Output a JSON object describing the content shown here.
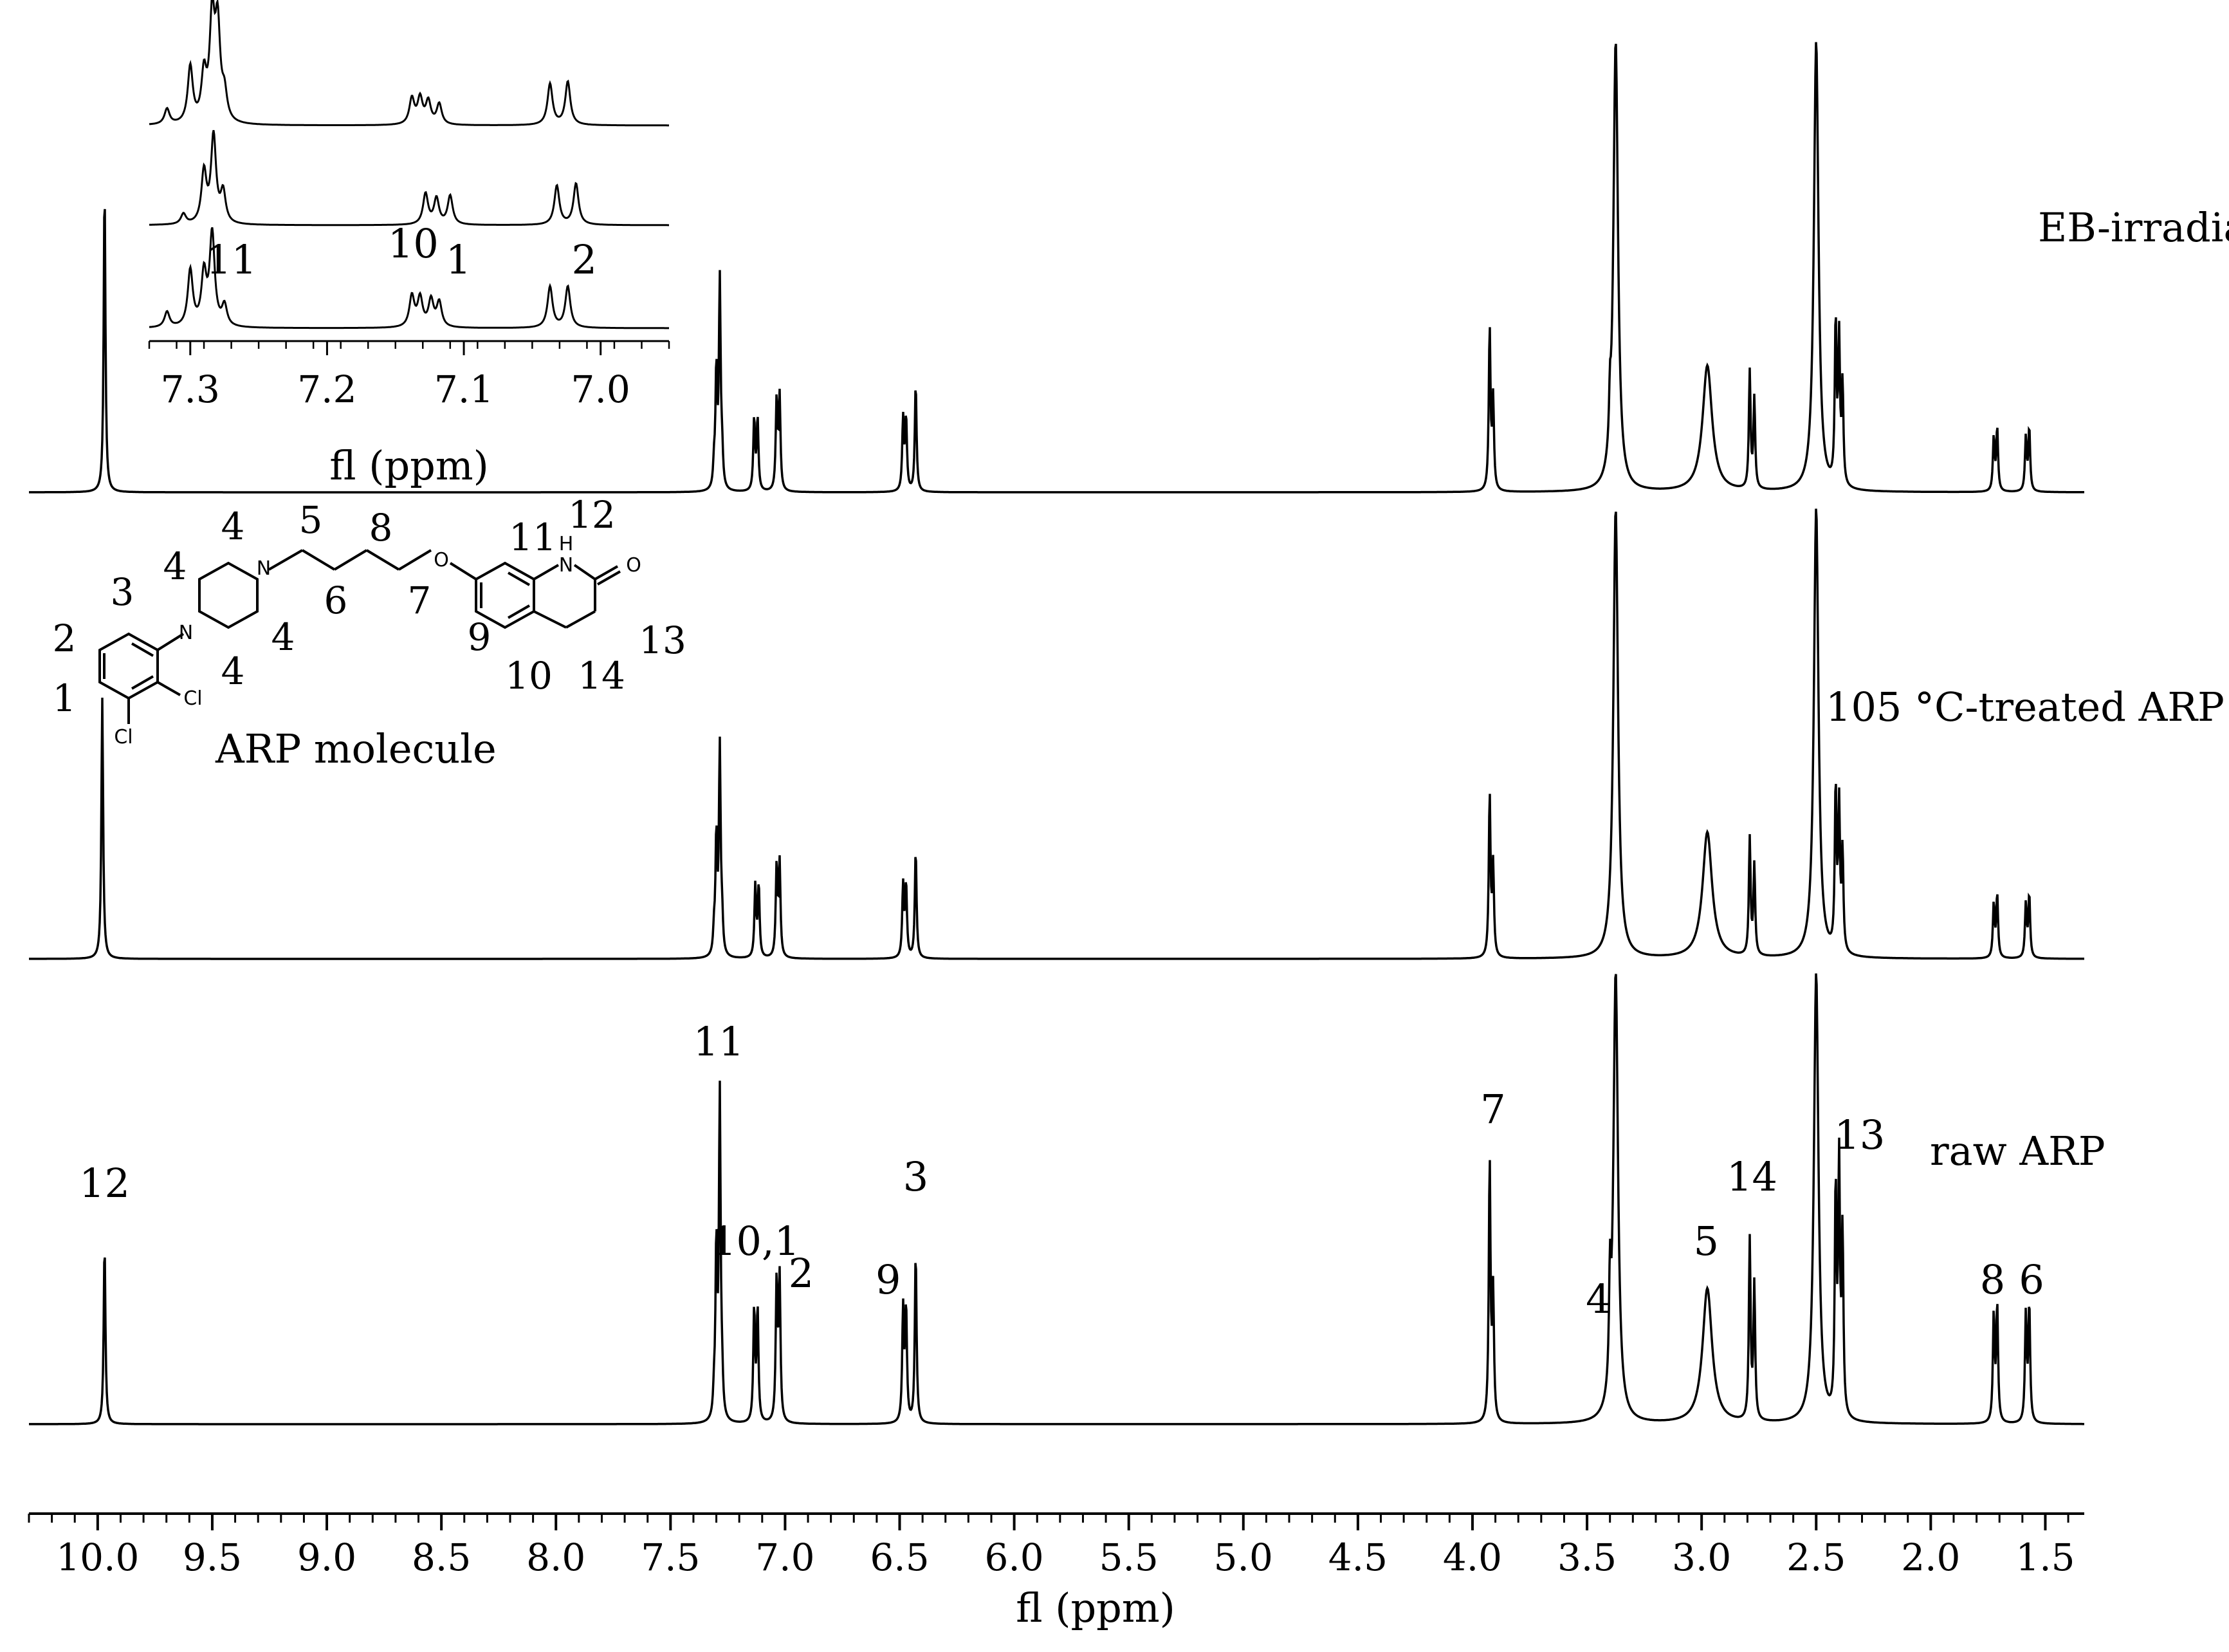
{
  "chart_data": {
    "type": "line",
    "title": "",
    "xlabel": "fl (ppm)",
    "ylabel": "",
    "x_reversed": true,
    "xlim": [
      10.3,
      1.33
    ],
    "xticks": [
      "10.0",
      "9.5",
      "9.0",
      "8.5",
      "8.0",
      "7.5",
      "7.0",
      "6.5",
      "6.0",
      "5.5",
      "5.0",
      "4.5",
      "4.0",
      "3.5",
      "3.0",
      "2.5",
      "2.0",
      "1.5"
    ],
    "series": [
      {
        "name": "EB-irradiated ARP",
        "peaks": [
          {
            "ppm": 9.97,
            "height": 0.68
          },
          {
            "ppm": 7.31,
            "height": 0.05
          },
          {
            "ppm": 7.3,
            "height": 0.26
          },
          {
            "ppm": 7.285,
            "height": 0.46
          },
          {
            "ppm": 7.275,
            "height": 0.07
          },
          {
            "ppm": 7.135,
            "height": 0.16
          },
          {
            "ppm": 7.12,
            "height": 0.16
          },
          {
            "ppm": 7.037,
            "height": 0.2
          },
          {
            "ppm": 7.024,
            "height": 0.21
          },
          {
            "ppm": 6.485,
            "height": 0.16
          },
          {
            "ppm": 6.472,
            "height": 0.16
          },
          {
            "ppm": 6.43,
            "height": 0.24
          },
          {
            "ppm": 3.925,
            "height": 0.36
          },
          {
            "ppm": 3.91,
            "height": 0.2
          },
          {
            "ppm": 3.4,
            "height": 0.1
          },
          {
            "ppm": 3.375,
            "height": 1.0
          },
          {
            "ppm": 2.975,
            "height": 0.28
          },
          {
            "ppm": 2.79,
            "height": 0.26
          },
          {
            "ppm": 2.77,
            "height": 0.2
          },
          {
            "ppm": 2.5,
            "height": 1.0
          },
          {
            "ppm": 2.415,
            "height": 0.36
          },
          {
            "ppm": 2.4,
            "height": 0.32
          },
          {
            "ppm": 2.385,
            "height": 0.22
          },
          {
            "ppm": 1.725,
            "height": 0.12
          },
          {
            "ppm": 1.71,
            "height": 0.14
          },
          {
            "ppm": 1.585,
            "height": 0.12
          },
          {
            "ppm": 1.57,
            "height": 0.14
          }
        ]
      },
      {
        "name": "105 °C-treated ARP",
        "peaks": [
          {
            "ppm": 9.98,
            "height": 0.58
          },
          {
            "ppm": 7.31,
            "height": 0.05
          },
          {
            "ppm": 7.3,
            "height": 0.26
          },
          {
            "ppm": 7.285,
            "height": 0.46
          },
          {
            "ppm": 7.275,
            "height": 0.07
          },
          {
            "ppm": 7.13,
            "height": 0.16
          },
          {
            "ppm": 7.115,
            "height": 0.16
          },
          {
            "ppm": 7.037,
            "height": 0.2
          },
          {
            "ppm": 7.024,
            "height": 0.21
          },
          {
            "ppm": 6.485,
            "height": 0.16
          },
          {
            "ppm": 6.472,
            "height": 0.16
          },
          {
            "ppm": 6.43,
            "height": 0.24
          },
          {
            "ppm": 3.925,
            "height": 0.36
          },
          {
            "ppm": 3.91,
            "height": 0.2
          },
          {
            "ppm": 3.375,
            "height": 1.0
          },
          {
            "ppm": 2.975,
            "height": 0.28
          },
          {
            "ppm": 2.79,
            "height": 0.26
          },
          {
            "ppm": 2.77,
            "height": 0.2
          },
          {
            "ppm": 2.5,
            "height": 1.0
          },
          {
            "ppm": 2.415,
            "height": 0.36
          },
          {
            "ppm": 2.4,
            "height": 0.32
          },
          {
            "ppm": 2.385,
            "height": 0.22
          },
          {
            "ppm": 1.725,
            "height": 0.12
          },
          {
            "ppm": 1.71,
            "height": 0.14
          },
          {
            "ppm": 1.585,
            "height": 0.12
          },
          {
            "ppm": 1.57,
            "height": 0.14
          }
        ]
      },
      {
        "name": "raw ARP",
        "peaks": [
          {
            "ppm": 9.97,
            "height": 0.4
          },
          {
            "ppm": 7.31,
            "height": 0.05
          },
          {
            "ppm": 7.3,
            "height": 0.38
          },
          {
            "ppm": 7.285,
            "height": 0.72
          },
          {
            "ppm": 7.275,
            "height": 0.07
          },
          {
            "ppm": 7.135,
            "height": 0.25
          },
          {
            "ppm": 7.12,
            "height": 0.25
          },
          {
            "ppm": 7.037,
            "height": 0.31
          },
          {
            "ppm": 7.024,
            "height": 0.32
          },
          {
            "ppm": 6.485,
            "height": 0.25
          },
          {
            "ppm": 6.472,
            "height": 0.25
          },
          {
            "ppm": 6.43,
            "height": 0.38
          },
          {
            "ppm": 3.925,
            "height": 0.58
          },
          {
            "ppm": 3.91,
            "height": 0.28
          },
          {
            "ppm": 3.4,
            "height": 0.22
          },
          {
            "ppm": 3.375,
            "height": 1.0
          },
          {
            "ppm": 2.975,
            "height": 0.3
          },
          {
            "ppm": 2.79,
            "height": 0.4
          },
          {
            "ppm": 2.77,
            "height": 0.3
          },
          {
            "ppm": 2.5,
            "height": 1.0
          },
          {
            "ppm": 2.415,
            "height": 0.5
          },
          {
            "ppm": 2.4,
            "height": 0.55
          },
          {
            "ppm": 2.385,
            "height": 0.4
          },
          {
            "ppm": 1.725,
            "height": 0.24
          },
          {
            "ppm": 1.71,
            "height": 0.26
          },
          {
            "ppm": 1.585,
            "height": 0.24
          },
          {
            "ppm": 1.57,
            "height": 0.26
          }
        ]
      }
    ],
    "peak_labels": [
      {
        "text": "12",
        "ppm": 9.97
      },
      {
        "text": "11",
        "ppm": 7.29
      },
      {
        "text": "10,1",
        "ppm": 7.13
      },
      {
        "text": "2",
        "ppm": 6.93
      },
      {
        "text": "9",
        "ppm": 6.55
      },
      {
        "text": "3",
        "ppm": 6.43
      },
      {
        "text": "7",
        "ppm": 3.91
      },
      {
        "text": "4",
        "ppm": 3.45
      },
      {
        "text": "5",
        "ppm": 2.98
      },
      {
        "text": "14",
        "ppm": 2.78
      },
      {
        "text": "13",
        "ppm": 2.31
      },
      {
        "text": "8",
        "ppm": 1.73
      },
      {
        "text": "6",
        "ppm": 1.56
      }
    ],
    "inset": {
      "xlabel": "fl (ppm)",
      "xlim": [
        7.33,
        6.95
      ],
      "xticks": [
        "7.3",
        "7.2",
        "7.1",
        "7.0"
      ],
      "peak_labels": [
        {
          "text": "11",
          "ppm": 7.27
        },
        {
          "text": "10",
          "ppm": 7.137
        },
        {
          "text": "1",
          "ppm": 7.104
        },
        {
          "text": "2",
          "ppm": 7.012
        }
      ]
    },
    "molecule": {
      "caption": "ARP molecule",
      "atom_numbers": [
        "1",
        "2",
        "3",
        "4",
        "4",
        "4",
        "4",
        "5",
        "6",
        "7",
        "8",
        "9",
        "10",
        "11",
        "12",
        "13",
        "14"
      ],
      "heteroatoms": [
        "N",
        "N",
        "O",
        "H",
        "N",
        "O",
        "Cl",
        "Cl"
      ]
    }
  }
}
